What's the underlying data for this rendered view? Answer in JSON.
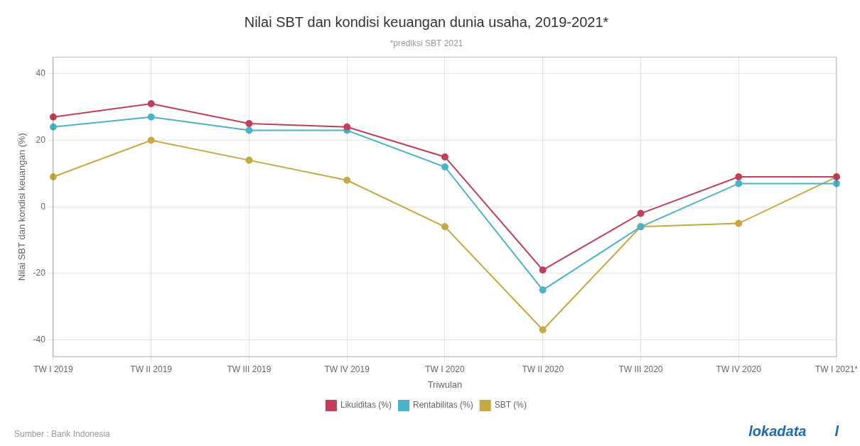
{
  "chart_data": {
    "type": "line",
    "title": "Nilai SBT dan kondisi keuangan dunia usaha, 2019-2021*",
    "subtitle": "*prediksi SBT 2021",
    "xlabel": "Triwulan",
    "ylabel": "Nilai SBT dan kondisi keuangan (%)",
    "categories": [
      "TW I 2019",
      "TW II 2019",
      "TW III 2019",
      "TW IV 2019",
      "TW I 2020",
      "TW II 2020",
      "TW III 2020",
      "TW IV 2020",
      "TW I 2021*"
    ],
    "series": [
      {
        "name": "Likuiditas (%)",
        "color": "#c0405a",
        "values": [
          27,
          31,
          25,
          24,
          15,
          -19,
          -2,
          9,
          9
        ]
      },
      {
        "name": "Rentabilitas (%)",
        "color": "#4ab3c8",
        "values": [
          24,
          27,
          23,
          23,
          12,
          -25,
          -6,
          7,
          7
        ]
      },
      {
        "name": "SBT (%)",
        "color": "#c8a840",
        "values": [
          9,
          20,
          14,
          8,
          -6,
          -37,
          -6,
          -5,
          9
        ]
      }
    ],
    "ylim": [
      -45,
      45
    ],
    "yticks": [
      -40,
      -20,
      0,
      20,
      40
    ],
    "grid": true,
    "legend": "bottom",
    "marker": "circle",
    "annotations": [
      "Sumber : Bank Indonesia",
      "lokadata",
      "l"
    ]
  }
}
